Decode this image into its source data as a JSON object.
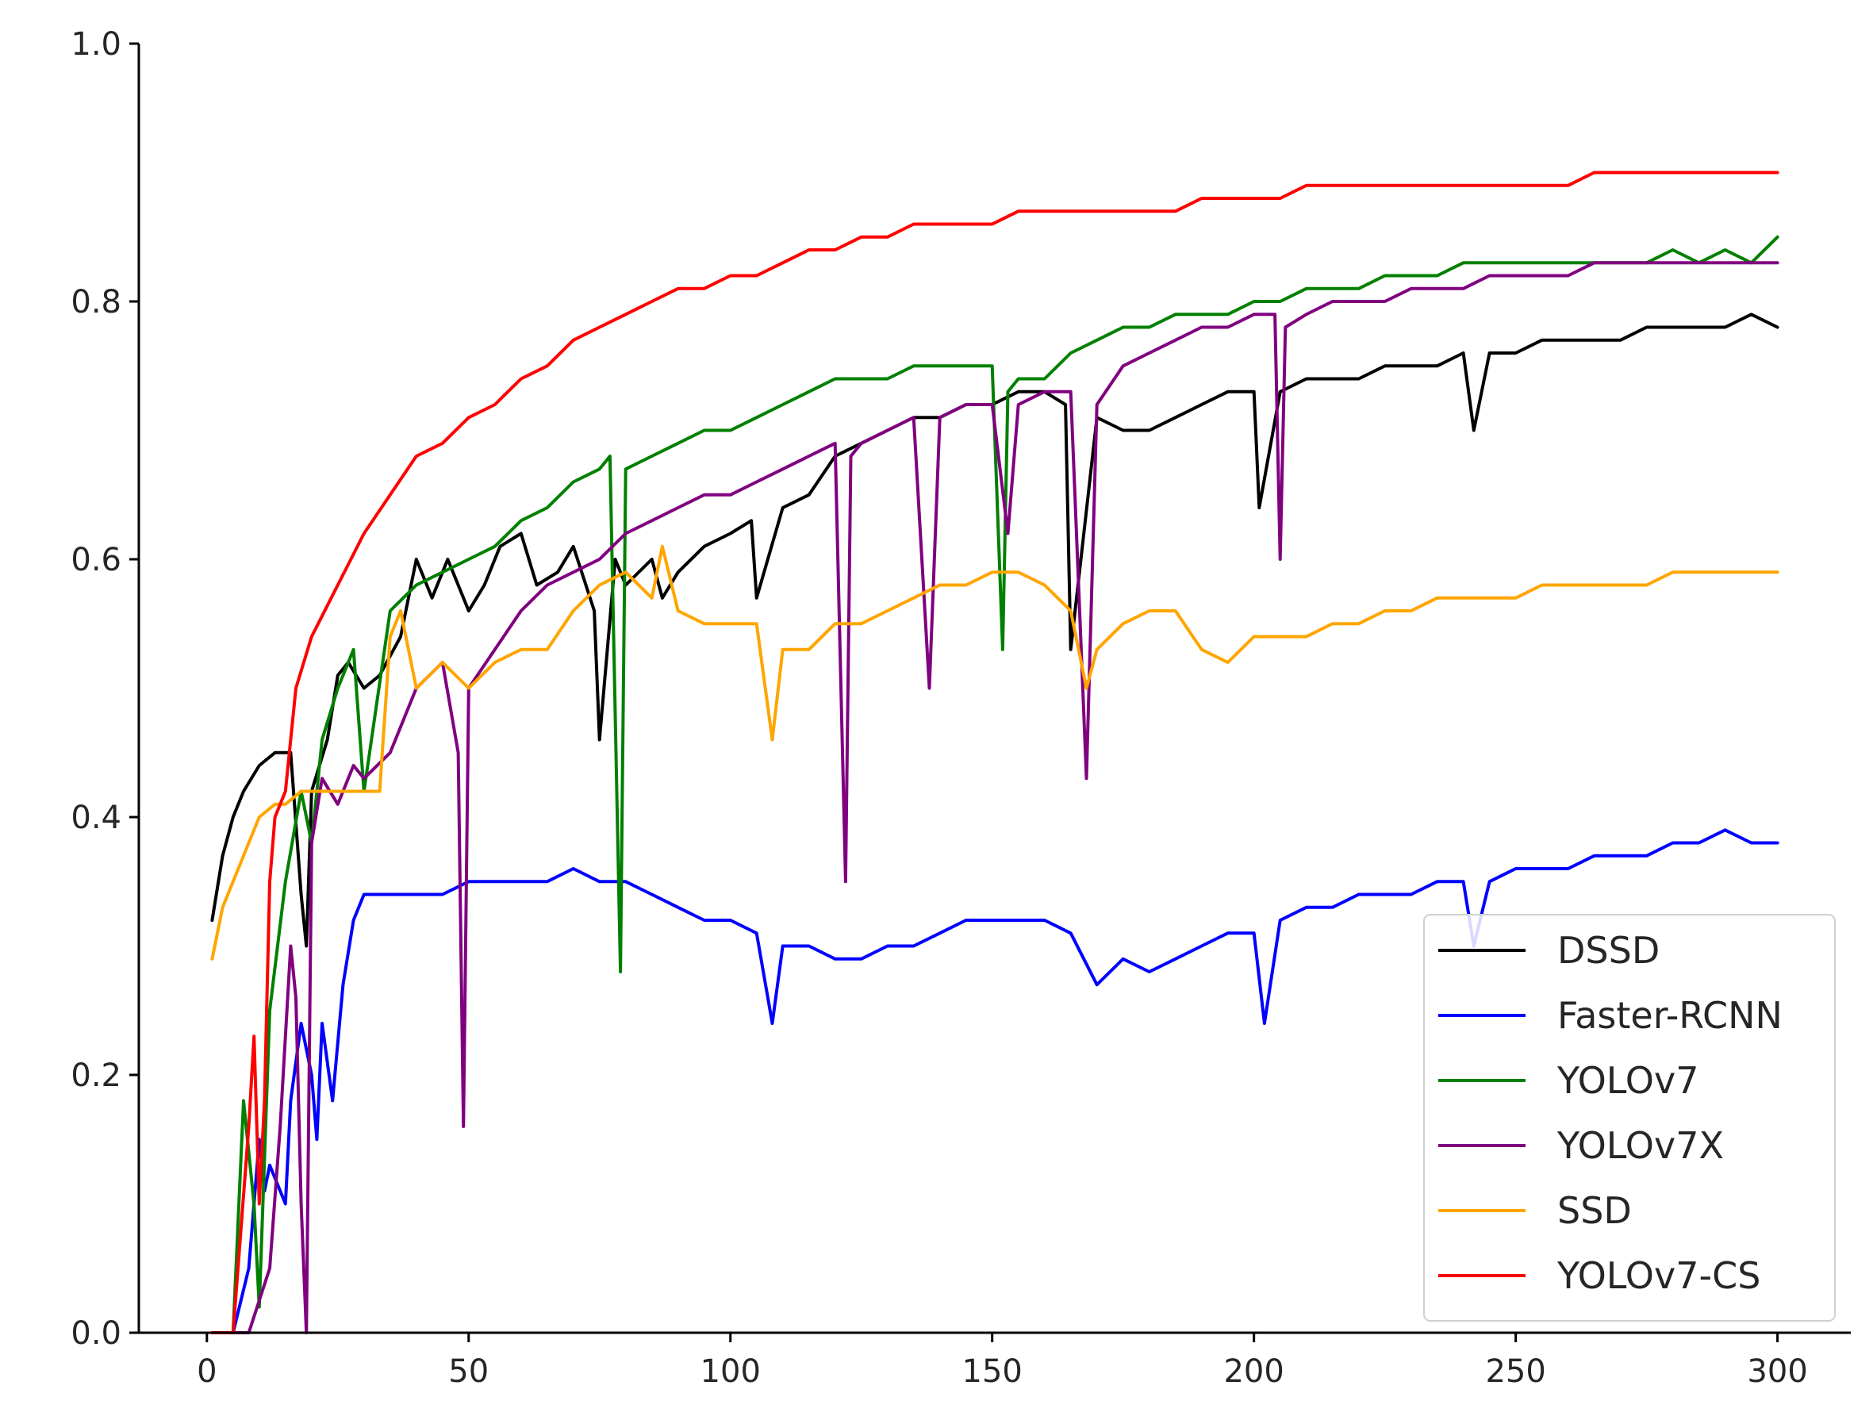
{
  "chart_data": {
    "type": "line",
    "title": "",
    "xlabel": "",
    "ylabel": "",
    "xlim": [
      -13,
      314
    ],
    "ylim": [
      0.0,
      1.0
    ],
    "xticks": [
      0,
      50,
      100,
      150,
      200,
      250,
      300
    ],
    "xtick_labels": [
      "0",
      "50",
      "100",
      "150",
      "200",
      "250",
      "300"
    ],
    "yticks": [
      0.0,
      0.2,
      0.4,
      0.6,
      0.8,
      1.0
    ],
    "ytick_labels": [
      "0.0",
      "0.2",
      "0.4",
      "0.6",
      "0.8",
      "1.0"
    ],
    "grid": false,
    "legend_position": "lower-right",
    "series": [
      {
        "name": "DSSD",
        "color": "#000000",
        "x": [
          1,
          3,
          5,
          7,
          10,
          13,
          16,
          18,
          19,
          20,
          23,
          25,
          27,
          30,
          33,
          37,
          40,
          43,
          46,
          50,
          53,
          56,
          60,
          63,
          67,
          70,
          74,
          75,
          78,
          80,
          85,
          87,
          90,
          95,
          100,
          104,
          105,
          110,
          115,
          120,
          125,
          130,
          135,
          140,
          145,
          150,
          155,
          160,
          164,
          165,
          170,
          175,
          180,
          185,
          190,
          195,
          200,
          201,
          205,
          210,
          215,
          220,
          225,
          230,
          235,
          240,
          242,
          245,
          250,
          255,
          260,
          265,
          270,
          275,
          280,
          285,
          290,
          295,
          300
        ],
        "y": [
          0.32,
          0.37,
          0.4,
          0.42,
          0.44,
          0.45,
          0.45,
          0.34,
          0.3,
          0.42,
          0.46,
          0.51,
          0.52,
          0.5,
          0.51,
          0.54,
          0.6,
          0.57,
          0.6,
          0.56,
          0.58,
          0.61,
          0.62,
          0.58,
          0.59,
          0.61,
          0.56,
          0.46,
          0.6,
          0.58,
          0.6,
          0.57,
          0.59,
          0.61,
          0.62,
          0.63,
          0.57,
          0.64,
          0.65,
          0.68,
          0.69,
          0.7,
          0.71,
          0.71,
          0.72,
          0.72,
          0.73,
          0.73,
          0.72,
          0.53,
          0.71,
          0.7,
          0.7,
          0.71,
          0.72,
          0.73,
          0.73,
          0.64,
          0.73,
          0.74,
          0.74,
          0.74,
          0.75,
          0.75,
          0.75,
          0.76,
          0.7,
          0.76,
          0.76,
          0.77,
          0.77,
          0.77,
          0.77,
          0.78,
          0.78,
          0.78,
          0.78,
          0.79,
          0.78
        ]
      },
      {
        "name": "Faster-RCNN",
        "color": "#0000ff",
        "x": [
          1,
          5,
          8,
          10,
          11,
          12,
          15,
          16,
          18,
          20,
          21,
          22,
          24,
          26,
          28,
          30,
          35,
          40,
          45,
          50,
          55,
          60,
          65,
          70,
          75,
          80,
          85,
          90,
          95,
          100,
          105,
          108,
          110,
          115,
          120,
          125,
          130,
          135,
          140,
          145,
          150,
          155,
          160,
          165,
          170,
          175,
          180,
          185,
          190,
          195,
          200,
          202,
          205,
          210,
          215,
          220,
          225,
          230,
          235,
          240,
          242,
          245,
          250,
          255,
          260,
          265,
          270,
          275,
          280,
          285,
          290,
          295,
          300
        ],
        "y": [
          0.0,
          0.0,
          0.05,
          0.15,
          0.11,
          0.13,
          0.1,
          0.18,
          0.24,
          0.2,
          0.15,
          0.24,
          0.18,
          0.27,
          0.32,
          0.34,
          0.34,
          0.34,
          0.34,
          0.35,
          0.35,
          0.35,
          0.35,
          0.36,
          0.35,
          0.35,
          0.34,
          0.33,
          0.32,
          0.32,
          0.31,
          0.24,
          0.3,
          0.3,
          0.29,
          0.29,
          0.3,
          0.3,
          0.31,
          0.32,
          0.32,
          0.32,
          0.32,
          0.31,
          0.27,
          0.29,
          0.28,
          0.29,
          0.3,
          0.31,
          0.31,
          0.24,
          0.32,
          0.33,
          0.33,
          0.34,
          0.34,
          0.34,
          0.35,
          0.35,
          0.3,
          0.35,
          0.36,
          0.36,
          0.36,
          0.37,
          0.37,
          0.37,
          0.38,
          0.38,
          0.39,
          0.38,
          0.38
        ]
      },
      {
        "name": "YOLOv7",
        "color": "#008000",
        "x": [
          1,
          5,
          7,
          9,
          10,
          12,
          15,
          18,
          20,
          22,
          25,
          28,
          30,
          35,
          40,
          45,
          50,
          55,
          60,
          65,
          70,
          75,
          77,
          79,
          80,
          85,
          90,
          95,
          100,
          105,
          110,
          115,
          120,
          125,
          130,
          135,
          140,
          145,
          150,
          152,
          153,
          155,
          160,
          165,
          170,
          175,
          180,
          185,
          190,
          195,
          200,
          205,
          210,
          215,
          220,
          225,
          230,
          235,
          240,
          245,
          250,
          255,
          260,
          265,
          270,
          275,
          280,
          285,
          290,
          295,
          300
        ],
        "y": [
          0.0,
          0.0,
          0.18,
          0.1,
          0.02,
          0.25,
          0.35,
          0.42,
          0.38,
          0.46,
          0.5,
          0.53,
          0.42,
          0.56,
          0.58,
          0.59,
          0.6,
          0.61,
          0.63,
          0.64,
          0.66,
          0.67,
          0.68,
          0.28,
          0.67,
          0.68,
          0.69,
          0.7,
          0.7,
          0.71,
          0.72,
          0.73,
          0.74,
          0.74,
          0.74,
          0.75,
          0.75,
          0.75,
          0.75,
          0.53,
          0.73,
          0.74,
          0.74,
          0.76,
          0.77,
          0.78,
          0.78,
          0.79,
          0.79,
          0.79,
          0.8,
          0.8,
          0.81,
          0.81,
          0.81,
          0.82,
          0.82,
          0.82,
          0.83,
          0.83,
          0.83,
          0.83,
          0.83,
          0.83,
          0.83,
          0.83,
          0.84,
          0.83,
          0.84,
          0.83,
          0.85
        ]
      },
      {
        "name": "YOLOv7X",
        "color": "#800080",
        "x": [
          1,
          8,
          12,
          14,
          16,
          17,
          18,
          19,
          20,
          22,
          25,
          28,
          30,
          35,
          38,
          40,
          45,
          48,
          49,
          50,
          55,
          60,
          65,
          70,
          75,
          80,
          85,
          90,
          95,
          100,
          105,
          110,
          115,
          120,
          122,
          123,
          125,
          130,
          135,
          138,
          140,
          145,
          150,
          153,
          155,
          160,
          165,
          168,
          170,
          175,
          180,
          185,
          190,
          195,
          200,
          204,
          205,
          206,
          210,
          215,
          220,
          225,
          230,
          235,
          240,
          245,
          250,
          255,
          260,
          265,
          270,
          275,
          280,
          285,
          290,
          295,
          300
        ],
        "y": [
          0.0,
          0.0,
          0.05,
          0.16,
          0.3,
          0.26,
          0.1,
          0.0,
          0.38,
          0.43,
          0.41,
          0.44,
          0.43,
          0.45,
          0.48,
          0.5,
          0.52,
          0.45,
          0.16,
          0.5,
          0.53,
          0.56,
          0.58,
          0.59,
          0.6,
          0.62,
          0.63,
          0.64,
          0.65,
          0.65,
          0.66,
          0.67,
          0.68,
          0.69,
          0.35,
          0.68,
          0.69,
          0.7,
          0.71,
          0.5,
          0.71,
          0.72,
          0.72,
          0.62,
          0.72,
          0.73,
          0.73,
          0.43,
          0.72,
          0.75,
          0.76,
          0.77,
          0.78,
          0.78,
          0.79,
          0.79,
          0.6,
          0.78,
          0.79,
          0.8,
          0.8,
          0.8,
          0.81,
          0.81,
          0.81,
          0.82,
          0.82,
          0.82,
          0.82,
          0.83,
          0.83,
          0.83,
          0.83,
          0.83,
          0.83,
          0.83,
          0.83
        ]
      },
      {
        "name": "SSD",
        "color": "#ffa500",
        "x": [
          1,
          3,
          5,
          8,
          10,
          13,
          15,
          18,
          20,
          25,
          30,
          33,
          35,
          37,
          40,
          45,
          50,
          55,
          60,
          65,
          70,
          75,
          80,
          85,
          87,
          90,
          95,
          100,
          105,
          108,
          110,
          115,
          120,
          125,
          130,
          135,
          140,
          145,
          150,
          155,
          160,
          165,
          168,
          170,
          175,
          180,
          185,
          190,
          195,
          200,
          205,
          210,
          215,
          220,
          225,
          230,
          235,
          240,
          245,
          250,
          255,
          260,
          265,
          270,
          275,
          280,
          285,
          290,
          295,
          300
        ],
        "y": [
          0.29,
          0.33,
          0.35,
          0.38,
          0.4,
          0.41,
          0.41,
          0.42,
          0.42,
          0.42,
          0.42,
          0.42,
          0.54,
          0.56,
          0.5,
          0.52,
          0.5,
          0.52,
          0.53,
          0.53,
          0.56,
          0.58,
          0.59,
          0.57,
          0.61,
          0.56,
          0.55,
          0.55,
          0.55,
          0.46,
          0.53,
          0.53,
          0.55,
          0.55,
          0.56,
          0.57,
          0.58,
          0.58,
          0.59,
          0.59,
          0.58,
          0.56,
          0.5,
          0.53,
          0.55,
          0.56,
          0.56,
          0.53,
          0.52,
          0.54,
          0.54,
          0.54,
          0.55,
          0.55,
          0.56,
          0.56,
          0.57,
          0.57,
          0.57,
          0.57,
          0.58,
          0.58,
          0.58,
          0.58,
          0.58,
          0.59,
          0.59,
          0.59,
          0.59,
          0.59
        ]
      },
      {
        "name": "YOLOv7-CS",
        "color": "#ff0000",
        "x": [
          1,
          5,
          8,
          9,
          10,
          11,
          12,
          13,
          15,
          17,
          20,
          25,
          30,
          35,
          40,
          45,
          50,
          55,
          60,
          65,
          70,
          75,
          80,
          85,
          90,
          95,
          100,
          105,
          110,
          115,
          120,
          125,
          130,
          135,
          140,
          145,
          150,
          155,
          160,
          165,
          170,
          175,
          180,
          185,
          190,
          195,
          200,
          205,
          210,
          215,
          220,
          225,
          230,
          235,
          240,
          245,
          250,
          255,
          260,
          265,
          270,
          275,
          280,
          285,
          290,
          295,
          300
        ],
        "y": [
          0.0,
          0.0,
          0.16,
          0.23,
          0.1,
          0.18,
          0.35,
          0.4,
          0.42,
          0.5,
          0.54,
          0.58,
          0.62,
          0.65,
          0.68,
          0.69,
          0.71,
          0.72,
          0.74,
          0.75,
          0.77,
          0.78,
          0.79,
          0.8,
          0.81,
          0.81,
          0.82,
          0.82,
          0.83,
          0.84,
          0.84,
          0.85,
          0.85,
          0.86,
          0.86,
          0.86,
          0.86,
          0.87,
          0.87,
          0.87,
          0.87,
          0.87,
          0.87,
          0.87,
          0.88,
          0.88,
          0.88,
          0.88,
          0.89,
          0.89,
          0.89,
          0.89,
          0.89,
          0.89,
          0.89,
          0.89,
          0.89,
          0.89,
          0.89,
          0.9,
          0.9,
          0.9,
          0.9,
          0.9,
          0.9,
          0.9,
          0.9
        ]
      }
    ]
  }
}
